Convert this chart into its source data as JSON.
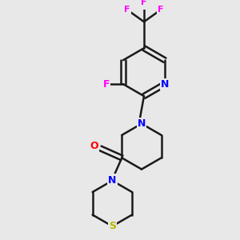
{
  "background_color": "#e8e8e8",
  "atom_colors": {
    "N": "#0000ff",
    "O": "#ff0000",
    "F": "#ff00ff",
    "S": "#b8b800"
  },
  "bond_color": "#1a1a1a",
  "line_width": 1.8,
  "figsize": [
    3.0,
    3.0
  ],
  "dpi": 100
}
